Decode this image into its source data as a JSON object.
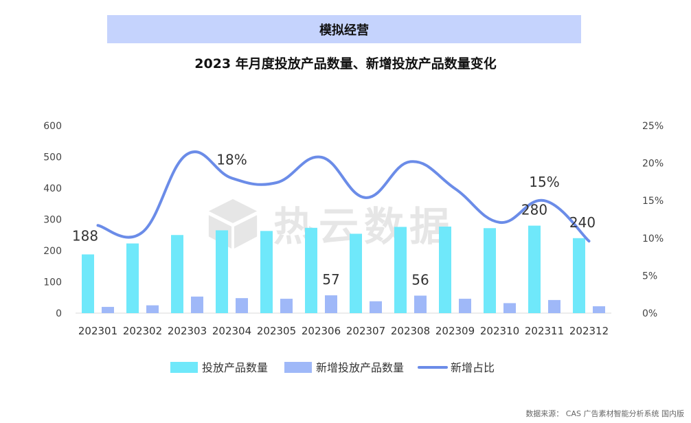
{
  "banner": {
    "title": "模拟经营"
  },
  "watermark": {
    "text": "热云数据"
  },
  "source": {
    "text": "数据来源： CAS 广告素材智能分析系统 国内版"
  },
  "colors": {
    "bar1": "#6fe8fa",
    "bar2": "#9fb8f8",
    "line": "#6b8ce8",
    "banner": "#c5d3fd"
  },
  "chart_data": {
    "type": "bar",
    "title": "2023 年月度投放产品数量、新增投放产品数量变化",
    "categories": [
      "202301",
      "202302",
      "202303",
      "202304",
      "202305",
      "202306",
      "202307",
      "202308",
      "202309",
      "202310",
      "202311",
      "202312"
    ],
    "series": [
      {
        "name": "投放产品数量",
        "type": "bar",
        "axis": "left",
        "values": [
          188,
          223,
          250,
          265,
          263,
          273,
          254,
          276,
          277,
          272,
          280,
          240
        ]
      },
      {
        "name": "新增投放产品数量",
        "type": "bar",
        "axis": "left",
        "values": [
          20,
          25,
          53,
          48,
          46,
          57,
          38,
          56,
          46,
          32,
          42,
          22
        ]
      },
      {
        "name": "新增占比",
        "type": "line",
        "axis": "right",
        "values": [
          11.7,
          10.8,
          21.2,
          18.0,
          17.4,
          20.8,
          15.4,
          20.2,
          16.6,
          12.1,
          15.0,
          9.6
        ]
      }
    ],
    "data_labels": [
      {
        "series": 0,
        "index": 0,
        "text": "188"
      },
      {
        "series": 0,
        "index": 10,
        "text": "280"
      },
      {
        "series": 0,
        "index": 11,
        "text": "240"
      },
      {
        "series": 1,
        "index": 5,
        "text": "57"
      },
      {
        "series": 1,
        "index": 7,
        "text": "56"
      },
      {
        "series": 2,
        "index": 3,
        "text": "18%"
      },
      {
        "series": 2,
        "index": 10,
        "text": "15%"
      }
    ],
    "ylim_left": [
      0,
      600
    ],
    "yticks_left": [
      "0",
      "100",
      "200",
      "300",
      "400",
      "500",
      "600"
    ],
    "ylim_right": [
      0,
      25
    ],
    "yticks_right": [
      "0%",
      "5%",
      "10%",
      "15%",
      "20%",
      "25%"
    ],
    "legend": {
      "position": "bottom",
      "items": [
        "投放产品数量",
        "新增投放产品数量",
        "新增占比"
      ]
    },
    "grid": false
  }
}
